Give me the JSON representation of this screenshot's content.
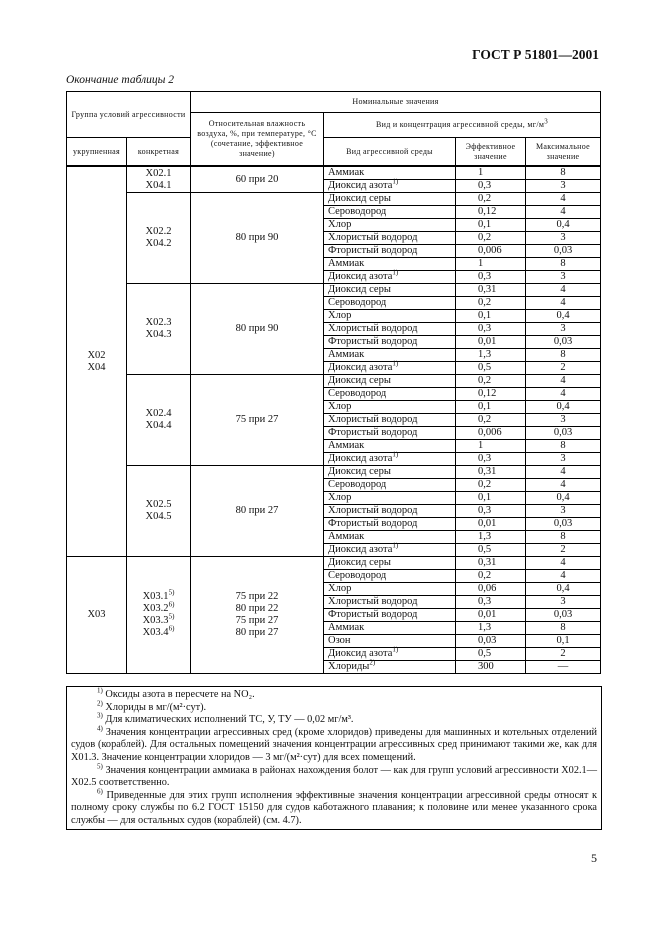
{
  "header": {
    "standard": "ГОСТ Р 51801—2001"
  },
  "caption": "Окончание таблицы 2",
  "table": {
    "headers": {
      "group": "Группа условий агрессивности",
      "nominal": "Номинальные значения",
      "humidity": "Относительная влажность воздуха, %, при температуре, °С (сочетание, эффективное значение)",
      "medium_conc": "Вид и концентрация агрессивной среды, мг/м",
      "medium_conc_sup": "3",
      "enlarged": "укрупненная",
      "specific": "конкретная",
      "medium_type": "Вид агрессивной среды",
      "effective": "Эффективное значение",
      "maximum": "Максимальное значение"
    },
    "sections": [
      {
        "enlarged": [
          "X02",
          "X04"
        ],
        "groups": [
          {
            "specific": [
              {
                "code": "X02.1",
                "note": ""
              },
              {
                "code": "X04.1",
                "note": ""
              }
            ],
            "humidity": [
              "60 при 20"
            ],
            "rows": [
              [
                "Аммиак",
                "",
                "1",
                "8"
              ],
              [
                "Диоксид азота",
                "1)",
                "0,3",
                "3"
              ]
            ]
          },
          {
            "specific": [
              {
                "code": "X02.2",
                "note": ""
              },
              {
                "code": "X04.2",
                "note": ""
              }
            ],
            "humidity": [
              "80 при 90"
            ],
            "rows": [
              [
                "Диоксид серы",
                "",
                "0,2",
                "4"
              ],
              [
                "Сероводород",
                "",
                "0,12",
                "4"
              ],
              [
                "Хлор",
                "",
                "0,1",
                "0,4"
              ],
              [
                "Хлористый водород",
                "",
                "0,2",
                "3"
              ],
              [
                "Фтористый водород",
                "",
                "0,006",
                "0,03"
              ],
              [
                "Аммиак",
                "",
                "1",
                "8"
              ],
              [
                "Диоксид азота",
                "1)",
                "0,3",
                "3"
              ]
            ]
          },
          {
            "specific": [
              {
                "code": "X02.3",
                "note": ""
              },
              {
                "code": "X04.3",
                "note": ""
              }
            ],
            "humidity": [
              "80 при 90"
            ],
            "rows": [
              [
                "Диоксид серы",
                "",
                "0,31",
                "4"
              ],
              [
                "Сероводород",
                "",
                "0,2",
                "4"
              ],
              [
                "Хлор",
                "",
                "0,1",
                "0,4"
              ],
              [
                "Хлористый водород",
                "",
                "0,3",
                "3"
              ],
              [
                "Фтористый водород",
                "",
                "0,01",
                "0,03"
              ],
              [
                "Аммиак",
                "",
                "1,3",
                "8"
              ],
              [
                "Диоксид азота",
                "1)",
                "0,5",
                "2"
              ]
            ]
          },
          {
            "specific": [
              {
                "code": "X02.4",
                "note": ""
              },
              {
                "code": "X04.4",
                "note": ""
              }
            ],
            "humidity": [
              "75 при 27"
            ],
            "rows": [
              [
                "Диоксид серы",
                "",
                "0,2",
                "4"
              ],
              [
                "Сероводород",
                "",
                "0,12",
                "4"
              ],
              [
                "Хлор",
                "",
                "0,1",
                "0,4"
              ],
              [
                "Хлористый водород",
                "",
                "0,2",
                "3"
              ],
              [
                "Фтористый водород",
                "",
                "0,006",
                "0,03"
              ],
              [
                "Аммиак",
                "",
                "1",
                "8"
              ],
              [
                "Диоксид азота",
                "1)",
                "0,3",
                "3"
              ]
            ]
          },
          {
            "specific": [
              {
                "code": "X02.5",
                "note": ""
              },
              {
                "code": "X04.5",
                "note": ""
              }
            ],
            "humidity": [
              "80 при 27"
            ],
            "rows": [
              [
                "Диоксид серы",
                "",
                "0,31",
                "4"
              ],
              [
                "Сероводород",
                "",
                "0,2",
                "4"
              ],
              [
                "Хлор",
                "",
                "0,1",
                "0,4"
              ],
              [
                "Хлористый водород",
                "",
                "0,3",
                "3"
              ],
              [
                "Фтористый водород",
                "",
                "0,01",
                "0,03"
              ],
              [
                "Аммиак",
                "",
                "1,3",
                "8"
              ],
              [
                "Диоксид азота",
                "1)",
                "0,5",
                "2"
              ]
            ]
          }
        ]
      },
      {
        "enlarged": [
          "X03"
        ],
        "groups": [
          {
            "specific": [
              {
                "code": "X03.1",
                "note": "5)"
              },
              {
                "code": "X03.2",
                "note": "6)"
              },
              {
                "code": "X03.3",
                "note": "5)"
              },
              {
                "code": "X03.4",
                "note": "6)"
              }
            ],
            "humidity": [
              "75 при 22",
              "80 при 22",
              "75 при 27",
              "80 при 27"
            ],
            "rows": [
              [
                "Диоксид серы",
                "",
                "0,31",
                "4"
              ],
              [
                "Сероводород",
                "",
                "0,2",
                "4"
              ],
              [
                "Хлор",
                "",
                "0,06",
                "0,4"
              ],
              [
                "Хлористый водород",
                "",
                "0,3",
                "3"
              ],
              [
                "Фтористый водород",
                "",
                "0,01",
                "0,03"
              ],
              [
                "Аммиак",
                "",
                "1,3",
                "8"
              ],
              [
                "Озон",
                "",
                "0,03",
                "0,1"
              ],
              [
                "Диоксид азота",
                "1)",
                "0,5",
                "2"
              ],
              [
                "Хлориды",
                "2)",
                "300",
                "—"
              ]
            ]
          }
        ]
      }
    ]
  },
  "footnotes": [
    {
      "mark": "1)",
      "text": "Оксиды азота в пересчете на NO₂."
    },
    {
      "mark": "2)",
      "text": "Хлориды в мг/(м²·сут)."
    },
    {
      "mark": "3)",
      "text": "Для климатических исполнений ТС, У, ТУ — 0,02 мг/м³."
    },
    {
      "mark": "4)",
      "text": "Значения концентрации агрессивных сред (кроме хлоридов) приведены для машинных и котельных отделений судов (кораблей). Для остальных помещений значения концентрации агрессивных сред принимают такими же, как для X01.3. Значение концентрации хлоридов — 3 мг/(м²·сут) для всех помещений."
    },
    {
      "mark": "5)",
      "text": "Значения концентрации аммиака в районах нахождения болот — как для групп условий агрессивности X02.1—X02.5 соответственно."
    },
    {
      "mark": "6)",
      "text": "Приведенные для этих групп исполнения эффективные значения концентрации агрессивной среды относят к полному сроку службы по 6.2 ГОСТ 15150 для судов каботажного плавания; к половине или менее указанного срока службы — для остальных судов (кораблей) (см. 4.7)."
    }
  ],
  "page_number": "5"
}
